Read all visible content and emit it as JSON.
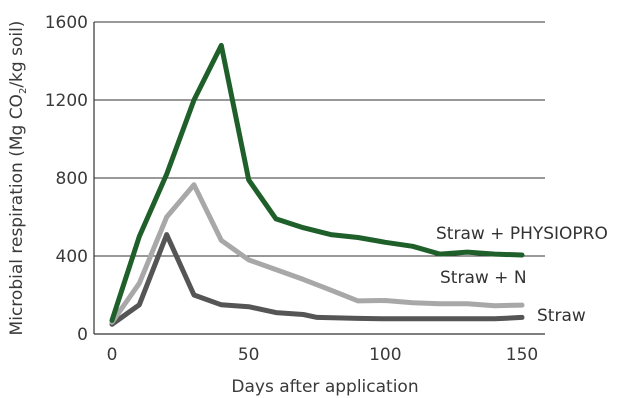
{
  "chart_data": {
    "type": "line",
    "xlabel": "Days after application",
    "ylabel_main": "Microbial respiration (Mg CO",
    "ylabel_sub": "2",
    "ylabel_tail": "/kg soil)",
    "xlim": [
      0,
      150
    ],
    "ylim": [
      0,
      1600
    ],
    "x_ticks": [
      0,
      50,
      100,
      150
    ],
    "y_ticks": [
      0,
      400,
      800,
      1200,
      1600
    ],
    "grid": "horizontal",
    "series": [
      {
        "name": "Straw + PHYSIOPRO",
        "color": "#1f5f2a",
        "x": [
          0,
          10,
          20,
          30,
          40,
          50,
          60,
          70,
          80,
          90,
          100,
          110,
          120,
          130,
          140,
          150
        ],
        "y": [
          70,
          500,
          820,
          1200,
          1480,
          790,
          590,
          545,
          510,
          495,
          470,
          450,
          410,
          420,
          410,
          405
        ]
      },
      {
        "name": "Straw + N",
        "color": "#a8a8a8",
        "x": [
          0,
          10,
          20,
          30,
          40,
          50,
          60,
          70,
          80,
          90,
          100,
          110,
          120,
          130,
          140,
          150
        ],
        "y": [
          60,
          260,
          600,
          765,
          480,
          380,
          330,
          280,
          225,
          170,
          172,
          160,
          155,
          155,
          145,
          148
        ]
      },
      {
        "name": "Straw",
        "color": "#555555",
        "x": [
          0,
          10,
          20,
          30,
          40,
          50,
          60,
          70,
          75,
          90,
          100,
          110,
          120,
          130,
          140,
          150
        ],
        "y": [
          50,
          150,
          510,
          200,
          150,
          140,
          110,
          100,
          85,
          80,
          78,
          78,
          78,
          78,
          78,
          85
        ]
      }
    ]
  }
}
